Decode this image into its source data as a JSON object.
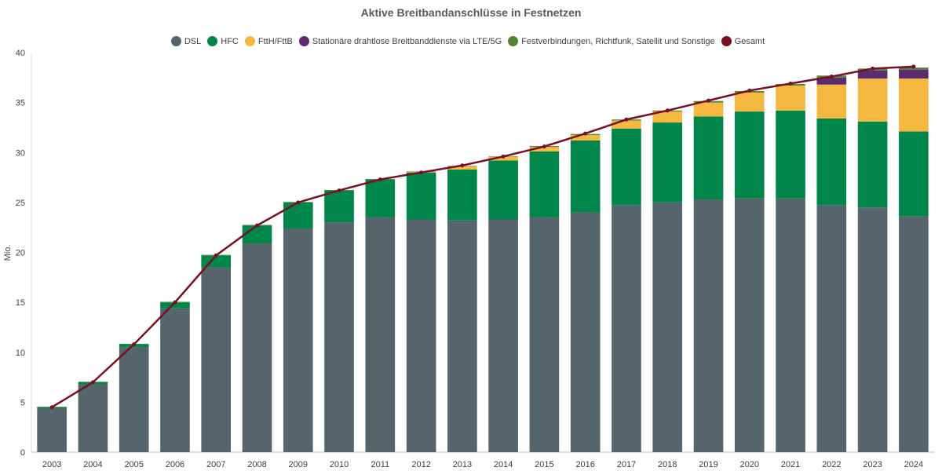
{
  "chart_data": {
    "type": "bar",
    "stacked": true,
    "title": "Aktive Breitbandanschlüsse in Festnetzen",
    "ylabel": "Mio.",
    "xlabel": "",
    "ylim": [
      0,
      40
    ],
    "yticks": [
      "0",
      "5",
      "10",
      "15",
      "20",
      "25",
      "30",
      "35",
      "40"
    ],
    "grid": false,
    "legend_position": "top",
    "categories": [
      "2003",
      "2004",
      "2005",
      "2006",
      "2007",
      "2008",
      "2009",
      "2010",
      "2011",
      "2012",
      "2013",
      "2014",
      "2015",
      "2016",
      "2017",
      "2018",
      "2019",
      "2020",
      "2021",
      "2022",
      "2023",
      "2024"
    ],
    "series": [
      {
        "name": "DSL",
        "color": "#56656c",
        "values": [
          4.4,
          6.8,
          10.5,
          14.4,
          18.5,
          20.9,
          22.4,
          23.0,
          23.5,
          23.3,
          23.2,
          23.3,
          23.5,
          24.0,
          24.7,
          25.0,
          25.3,
          25.4,
          25.4,
          24.7,
          24.5,
          23.6
        ]
      },
      {
        "name": "HFC",
        "color": "#00864b",
        "values": [
          0.1,
          0.2,
          0.3,
          0.6,
          1.2,
          1.8,
          2.6,
          3.2,
          3.8,
          4.7,
          5.1,
          5.9,
          6.6,
          7.2,
          7.7,
          8.0,
          8.3,
          8.7,
          8.8,
          8.7,
          8.6,
          8.5
        ]
      },
      {
        "name": "FttH/FttB",
        "color": "#f5b942",
        "values": [
          0,
          0,
          0,
          0,
          0,
          0,
          0,
          0,
          0,
          0.05,
          0.3,
          0.35,
          0.45,
          0.55,
          0.8,
          1.1,
          1.4,
          1.9,
          2.5,
          3.4,
          4.3,
          5.3
        ]
      },
      {
        "name": "Stationäre drahtlose Breitbanddienste via LTE/5G",
        "color": "#5b2c6f",
        "values": [
          0,
          0,
          0,
          0,
          0,
          0,
          0,
          0,
          0,
          0,
          0,
          0,
          0,
          0,
          0,
          0,
          0,
          0,
          0,
          0.7,
          0.8,
          0.9
        ]
      },
      {
        "name": "Festverbindungen, Richtfunk, Satellit und Sonstige",
        "color": "#548235",
        "values": [
          0.05,
          0.05,
          0.05,
          0.05,
          0.05,
          0.05,
          0.05,
          0.05,
          0.05,
          0.05,
          0.05,
          0.05,
          0.1,
          0.1,
          0.1,
          0.1,
          0.15,
          0.15,
          0.15,
          0.2,
          0.2,
          0.2
        ]
      },
      {
        "name": "Gesamt",
        "color": "#7a0f23",
        "type": "line",
        "values": [
          4.5,
          7.0,
          10.8,
          15.0,
          19.7,
          22.7,
          25.0,
          26.2,
          27.3,
          28.0,
          28.7,
          29.6,
          30.6,
          31.9,
          33.3,
          34.2,
          35.2,
          36.2,
          36.9,
          37.6,
          38.4,
          38.6
        ]
      }
    ]
  }
}
